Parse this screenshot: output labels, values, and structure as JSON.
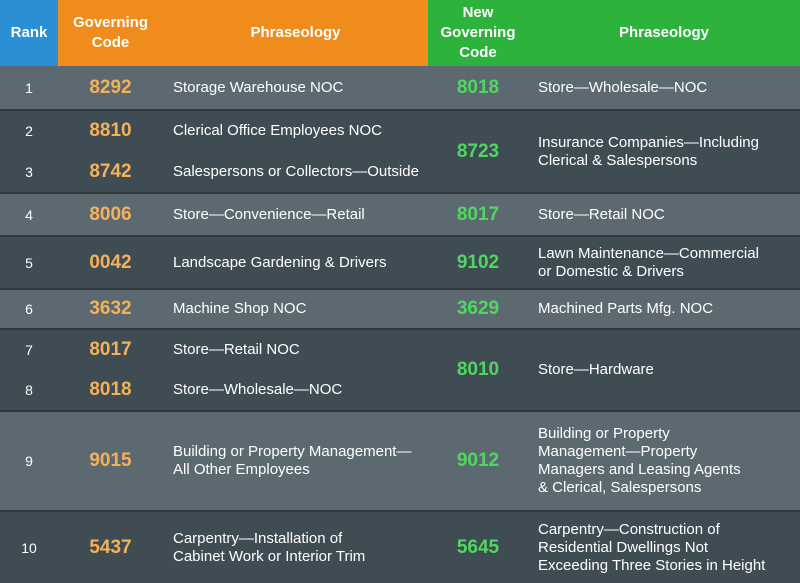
{
  "headers": {
    "rank": "Rank",
    "governing_code": "Governing Code",
    "phraseology": "Phraseology",
    "new_governing_code": "New Governing Code",
    "new_phraseology": "Phraseology"
  },
  "rows": [
    {
      "rank": "1",
      "code": "8292",
      "phrase": "Storage Warehouse NOC",
      "new_code": "8018",
      "new_phrase": "Store—Wholesale—NOC"
    },
    {
      "rank": "2",
      "code": "8810",
      "phrase": "Clerical Office Employees NOC",
      "new_code": "8723",
      "new_phrase": "Insurance Companies—Including\nClerical & Salespersons"
    },
    {
      "rank": "3",
      "code": "8742",
      "phrase": "Salespersons or Collectors—Outside"
    },
    {
      "rank": "4",
      "code": "8006",
      "phrase": "Store—Convenience—Retail",
      "new_code": "8017",
      "new_phrase": "Store—Retail NOC"
    },
    {
      "rank": "5",
      "code": "0042",
      "phrase": "Landscape Gardening & Drivers",
      "new_code": "9102",
      "new_phrase": "Lawn Maintenance—Commercial\nor Domestic & Drivers"
    },
    {
      "rank": "6",
      "code": "3632",
      "phrase": "Machine Shop NOC",
      "new_code": "3629",
      "new_phrase": "Machined Parts Mfg. NOC"
    },
    {
      "rank": "7",
      "code": "8017",
      "phrase": "Store—Retail NOC",
      "new_code": "8010",
      "new_phrase": "Store—Hardware"
    },
    {
      "rank": "8",
      "code": "8018",
      "phrase": "Store—Wholesale—NOC"
    },
    {
      "rank": "9",
      "code": "9015",
      "phrase": "Building or Property Management—\nAll Other Employees",
      "new_code": "9012",
      "new_phrase": "Building or Property\nManagement—Property\nManagers and Leasing Agents\n& Clerical, Salespersons"
    },
    {
      "rank": "10",
      "code": "5437",
      "phrase": "Carpentry—Installation of\nCabinet Work or Interior Trim",
      "new_code": "5645",
      "new_phrase": "Carpentry—Construction of\nResidential Dwellings Not\nExceeding Three Stories in Height"
    }
  ],
  "colors": {
    "rank_header": "#2a8fd4",
    "orange_header": "#f08c1c",
    "green_header": "#2db23b",
    "old_code_text": "#f4b15a",
    "new_code_text": "#4fd860"
  }
}
